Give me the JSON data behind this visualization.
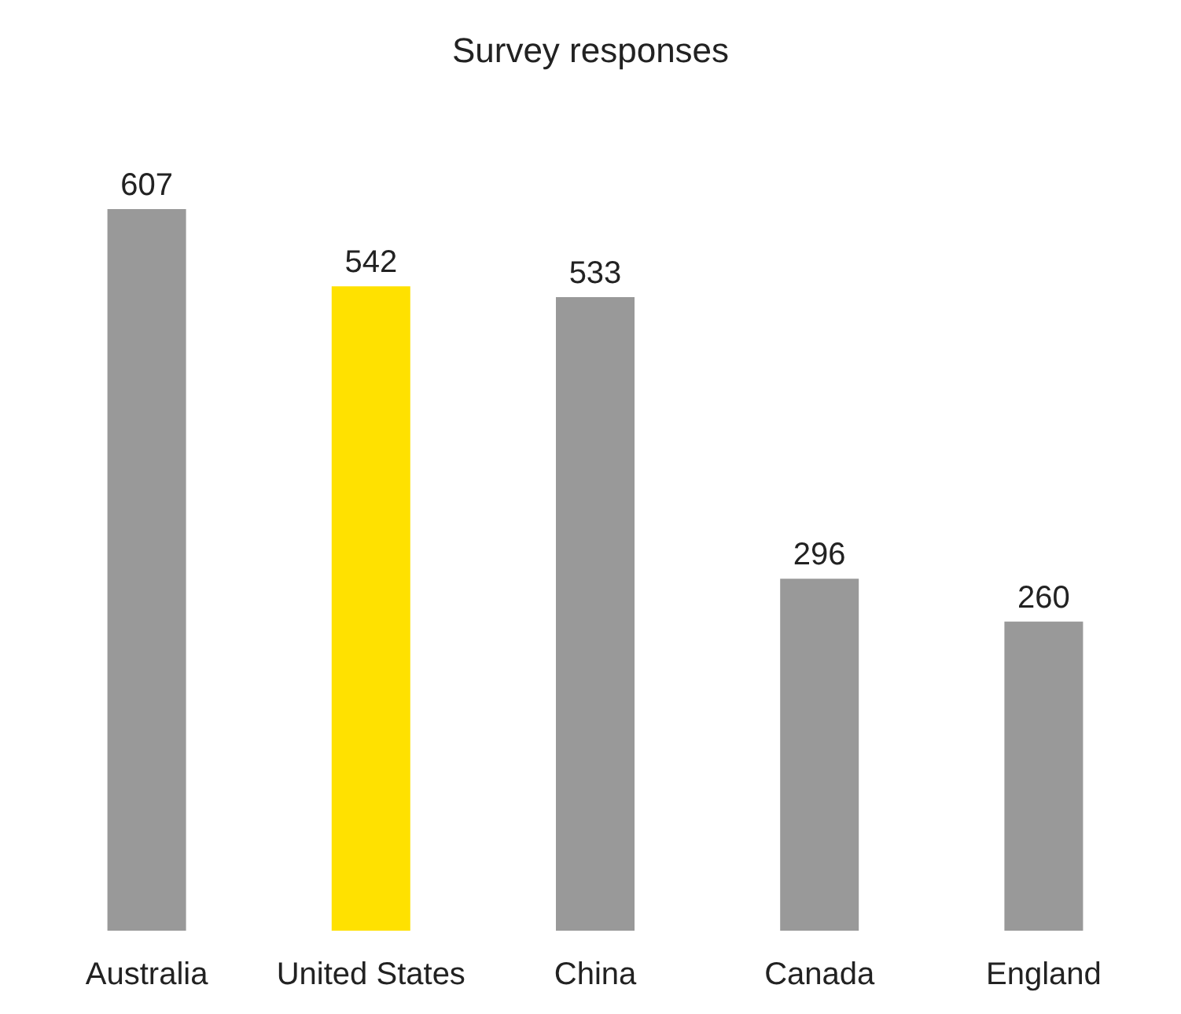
{
  "chart_data": {
    "type": "bar",
    "title": "Survey responses",
    "categories": [
      "Australia",
      "United States",
      "China",
      "Canada",
      "England"
    ],
    "values": [
      607,
      542,
      533,
      296,
      260
    ],
    "colors": [
      "#999999",
      "#ffe100",
      "#999999",
      "#999999",
      "#999999"
    ],
    "data_labels": true
  }
}
